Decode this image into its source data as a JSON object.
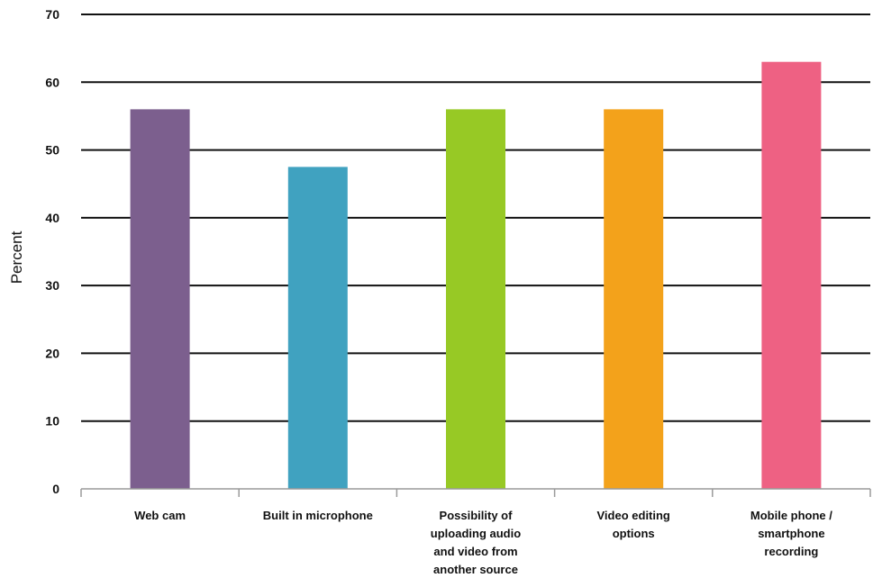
{
  "chart_data": {
    "type": "bar",
    "categories": [
      [
        "Web cam"
      ],
      [
        "Built in microphone"
      ],
      [
        "Possibility of",
        "uploading audio",
        "and video from",
        "another source"
      ],
      [
        "Video editing",
        "options"
      ],
      [
        "Mobile phone /",
        "smartphone",
        "recording"
      ]
    ],
    "values": [
      56,
      47.5,
      56,
      56,
      63
    ],
    "colors": [
      "#7c5f8e",
      "#40a2c0",
      "#97c925",
      "#f3a21b",
      "#ee6183"
    ],
    "ylabel": "Percent",
    "xlabel": "",
    "title": "",
    "ylim": [
      0,
      70
    ],
    "yticks": [
      0,
      10,
      20,
      30,
      40,
      50,
      60,
      70
    ],
    "grid": true,
    "legend": "none"
  }
}
